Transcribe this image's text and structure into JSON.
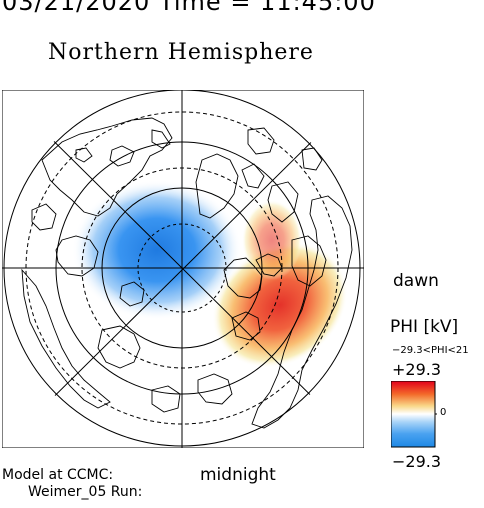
{
  "header": {
    "datetime": "03/21/2020 Time = 11:45:00",
    "hemisphere_title": "Northern Hemisphere"
  },
  "map": {
    "projection": "polar-stereographic",
    "center": "north-pole",
    "grid": "latitude circles (dashed) and meridians every 45°",
    "field": "electric potential PHI",
    "features": [
      {
        "name": "negative-cell",
        "polarity": "negative",
        "color": "#2a7fe6"
      },
      {
        "name": "positive-cell",
        "polarity": "positive",
        "color": "#e83a2a"
      }
    ]
  },
  "labels": {
    "dawn": "dawn",
    "midnight": "midnight",
    "model_line1": "Model at CCMC:",
    "model_line2": "Weimer_05 Run:"
  },
  "colorbar": {
    "title": "PHI [kV]",
    "range_text": "−29.3<PHI<21",
    "max_label": "+29.3",
    "mid_label": "0",
    "min_label": "−29.3",
    "colors": {
      "high": "#e3001b",
      "mid": "#ffffff",
      "low": "#1e88e5"
    }
  }
}
